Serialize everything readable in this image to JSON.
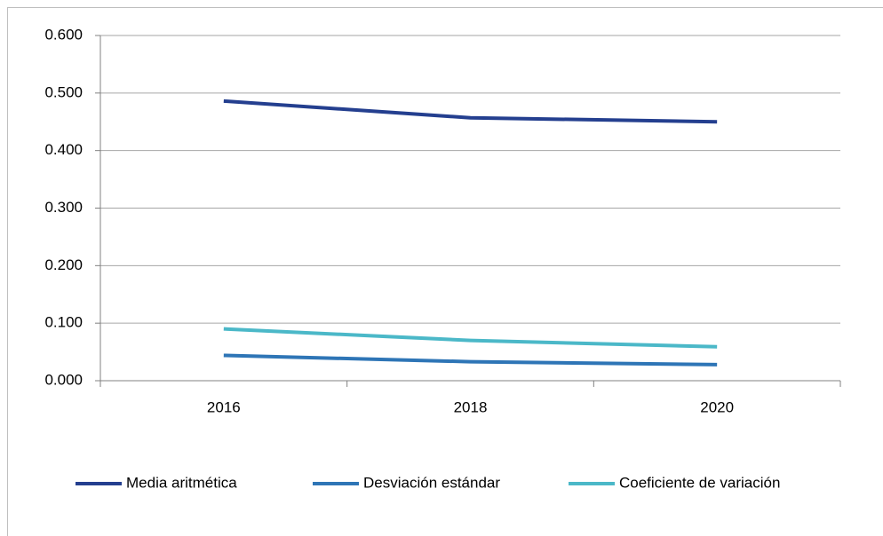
{
  "chart_data": {
    "type": "line",
    "categories": [
      "2016",
      "2018",
      "2020"
    ],
    "series": [
      {
        "name": "Media aritmética",
        "color": "#243f8f",
        "values": [
          0.486,
          0.457,
          0.45
        ]
      },
      {
        "name": "Desviación estándar",
        "color": "#2e75b6",
        "values": [
          0.044,
          0.033,
          0.028
        ]
      },
      {
        "name": "Coeficiente de variación",
        "color": "#4bb8c8",
        "values": [
          0.09,
          0.07,
          0.059
        ]
      }
    ],
    "ylim": [
      0,
      0.6
    ],
    "yticks": [
      {
        "value": 0,
        "label": "0.000"
      },
      {
        "value": 0.1,
        "label": "0.100"
      },
      {
        "value": 0.2,
        "label": "0.200"
      },
      {
        "value": 0.3,
        "label": "0.300"
      },
      {
        "value": 0.4,
        "label": "0.400"
      },
      {
        "value": 0.5,
        "label": "0.500"
      },
      {
        "value": 0.6,
        "label": "0.600"
      }
    ],
    "grid": true,
    "legend": "bottom"
  }
}
